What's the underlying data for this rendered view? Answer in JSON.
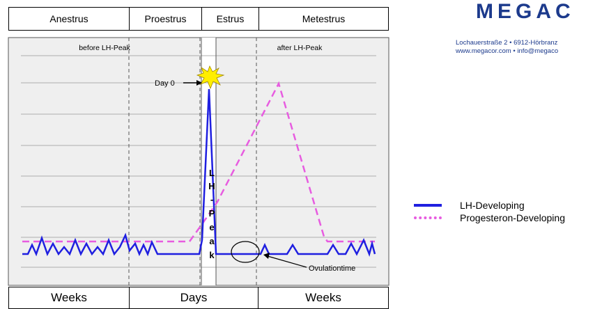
{
  "phases": [
    "Anestrus",
    "Proestrus",
    "Estrus",
    "Metestrus"
  ],
  "timescale": [
    "Weeks",
    "Days",
    "Weeks"
  ],
  "labels": {
    "before_peak": "before LH-Peak",
    "after_peak": "after LH-Peak",
    "day0": "Day 0",
    "peak_letters": [
      "L",
      "H",
      "-",
      "P",
      "e",
      "a",
      "k"
    ],
    "ovulation": "Ovulationtime"
  },
  "logo": "MEGAC",
  "address": {
    "line1": "Lochauerstraße 2 • 6912-Hörbranz",
    "web": "www.megacor.com",
    "sep": " • ",
    "email": "info@megaco"
  },
  "legend": [
    {
      "name": "LH-Developing",
      "color": "#1f1fe0",
      "style": "solid"
    },
    {
      "name": "Progesteron-Developing",
      "color": "#e75ce0",
      "style": "dashed"
    }
  ],
  "colors": {
    "plot_bg": "#efefef",
    "lh": "#1f1fe0",
    "progesterone": "#e75ce0",
    "star": "#ffee00"
  }
}
